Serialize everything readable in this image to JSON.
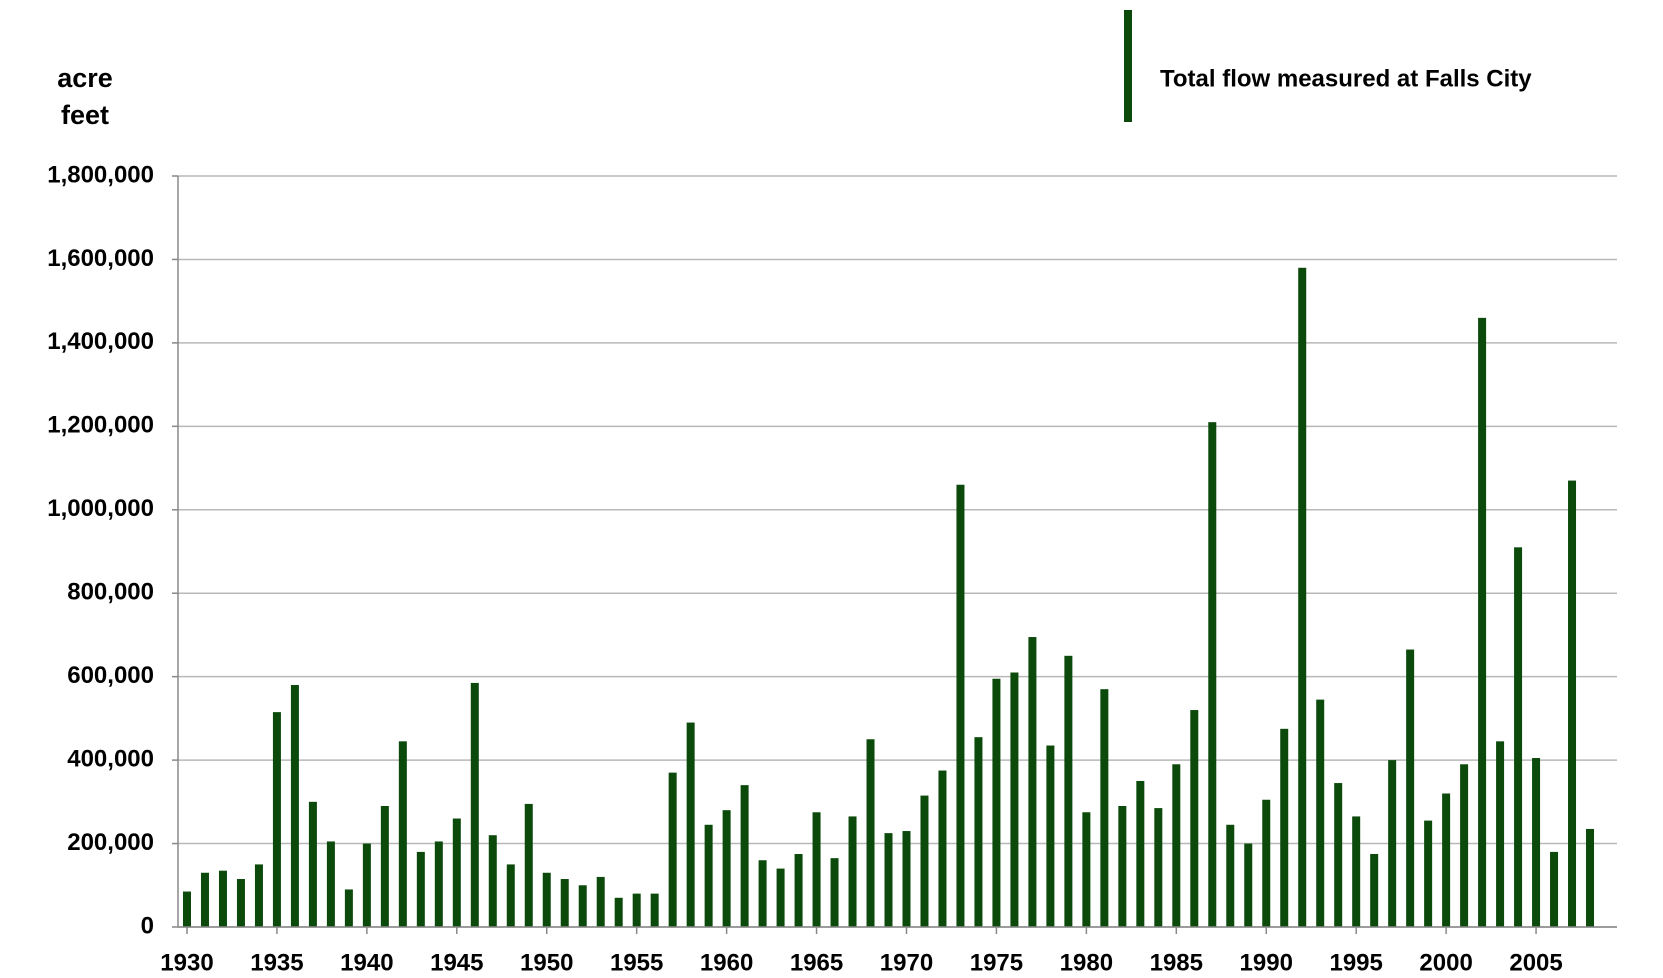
{
  "chart_data": {
    "type": "bar",
    "y_label": "acre feet",
    "categories": [
      "1930",
      null,
      null,
      null,
      null,
      "1935",
      null,
      null,
      null,
      null,
      "1940",
      null,
      null,
      null,
      null,
      "1945",
      null,
      null,
      null,
      null,
      "1950",
      null,
      null,
      null,
      null,
      "1955",
      null,
      null,
      null,
      null,
      "1960",
      null,
      null,
      null,
      null,
      "1965",
      null,
      null,
      null,
      null,
      "1970",
      null,
      null,
      null,
      null,
      "1975",
      null,
      null,
      null,
      null,
      "1980",
      null,
      null,
      null,
      null,
      "1985",
      null,
      null,
      null,
      null,
      "1990",
      null,
      null,
      null,
      null,
      "1995",
      null,
      null,
      null,
      null,
      "2000",
      null,
      null,
      null,
      null,
      "2005",
      null,
      null,
      null
    ],
    "series": [
      {
        "name": "Total flow measured at Falls City",
        "color": "#0b4a0b",
        "values": [
          85000,
          130000,
          135000,
          115000,
          150000,
          515000,
          580000,
          300000,
          205000,
          90000,
          200000,
          290000,
          445000,
          180000,
          205000,
          260000,
          585000,
          220000,
          150000,
          295000,
          130000,
          115000,
          100000,
          120000,
          70000,
          80000,
          80000,
          370000,
          490000,
          245000,
          280000,
          340000,
          160000,
          140000,
          175000,
          275000,
          165000,
          265000,
          450000,
          225000,
          230000,
          315000,
          375000,
          1060000,
          455000,
          595000,
          610000,
          695000,
          435000,
          650000,
          275000,
          570000,
          290000,
          350000,
          285000,
          390000,
          520000,
          1210000,
          245000,
          200000,
          305000,
          475000,
          1580000,
          545000,
          345000,
          265000,
          175000,
          400000,
          665000,
          255000,
          320000,
          390000,
          1460000,
          445000,
          910000,
          405000,
          180000,
          1070000,
          235000
        ]
      }
    ],
    "ylim": [
      0,
      1800000
    ],
    "yticks": [
      0,
      {
        "value": 200000,
        "label": "200,000"
      },
      {
        "value": 400000,
        "label": "400,000"
      },
      {
        "value": 600000,
        "label": "600,000"
      },
      {
        "value": 800000,
        "label": "800,000"
      },
      {
        "value": 1000000,
        "label": "1,000,000"
      },
      {
        "value": 1200000,
        "label": "1,200,000"
      },
      {
        "value": 1400000,
        "label": "1,400,000"
      },
      {
        "value": 1600000,
        "label": "1,600,000"
      },
      {
        "value": 1800000,
        "label": "1,800,000"
      }
    ],
    "grid": true,
    "legend": "top-right"
  }
}
